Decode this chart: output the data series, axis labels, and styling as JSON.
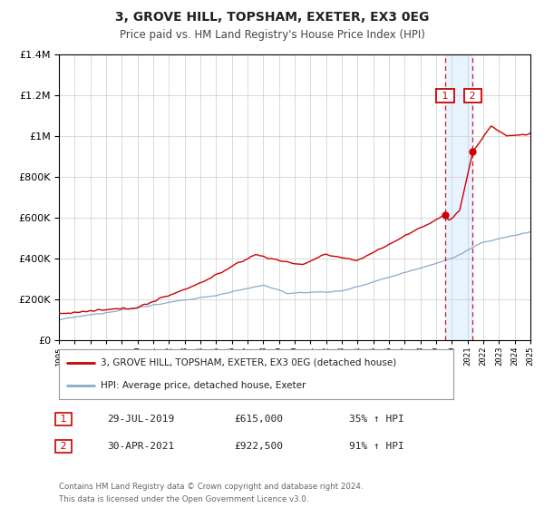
{
  "title": "3, GROVE HILL, TOPSHAM, EXETER, EX3 0EG",
  "subtitle": "Price paid vs. HM Land Registry's House Price Index (HPI)",
  "property_label": "3, GROVE HILL, TOPSHAM, EXETER, EX3 0EG (detached house)",
  "hpi_label": "HPI: Average price, detached house, Exeter",
  "property_color": "#cc0000",
  "hpi_color": "#88aacc",
  "sale1_date": "29-JUL-2019",
  "sale1_price": 615000,
  "sale1_pct": "35%",
  "sale2_date": "30-APR-2021",
  "sale2_price": 922500,
  "sale2_pct": "91%",
  "sale1_year": 2019.58,
  "sale2_year": 2021.33,
  "ylim_max": 1400000,
  "xlim_min": 1995,
  "xlim_max": 2025,
  "footer1": "Contains HM Land Registry data © Crown copyright and database right 2024.",
  "footer2": "This data is licensed under the Open Government Licence v3.0.",
  "background_color": "#ffffff",
  "grid_color": "#cccccc",
  "shade_color": "#ddeeff"
}
